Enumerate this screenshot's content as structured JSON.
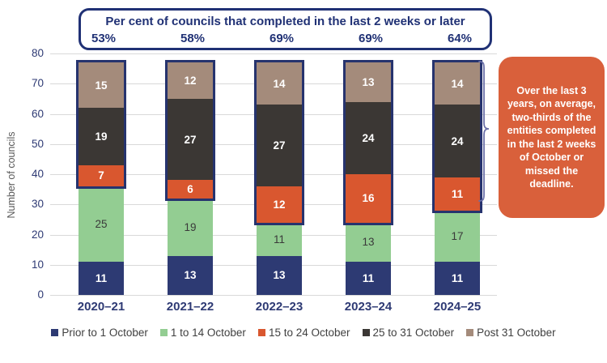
{
  "header": {
    "title": "Per cent of councils that completed in the last 2 weeks or later",
    "percentages": [
      "53%",
      "58%",
      "69%",
      "69%",
      "64%"
    ]
  },
  "chart_data": {
    "type": "bar",
    "stacked": true,
    "categories": [
      "2020–21",
      "2021–22",
      "2022–23",
      "2023–24",
      "2024–25"
    ],
    "series": [
      {
        "name": "Prior to 1 October",
        "color": "#2D3A73",
        "label_color": "#FFFFFF",
        "values": [
          11,
          13,
          13,
          11,
          11
        ]
      },
      {
        "name": "1 to 14 October",
        "color": "#93CD92",
        "label_color": "#3A3A3A",
        "values": [
          25,
          19,
          11,
          13,
          17
        ]
      },
      {
        "name": "15 to 24 October",
        "color": "#D9572F",
        "label_color": "#FFFFFF",
        "values": [
          7,
          6,
          12,
          16,
          11
        ]
      },
      {
        "name": "25 to 31 October",
        "color": "#3B3734",
        "label_color": "#FFFFFF",
        "values": [
          19,
          27,
          27,
          24,
          24
        ]
      },
      {
        "name": "Post 31 October",
        "color": "#A48B7B",
        "label_color": "#FFFFFF",
        "values": [
          15,
          12,
          14,
          13,
          14
        ]
      }
    ],
    "ylabel": "Number of councils",
    "ylim": [
      0,
      80
    ],
    "yticks": [
      0,
      10,
      20,
      30,
      40,
      50,
      60,
      70,
      80
    ],
    "grid": true,
    "legend_position": "bottom",
    "highlight_outline": {
      "from_series": "15 to 24 October",
      "from_series_index": 2,
      "color": "#26336E"
    }
  },
  "callout": {
    "text": "Over the last 3 years, on average, two-thirds of the entities completed in the last 2 weeks of October or missed the deadline.",
    "bg_color": "#D9603B",
    "text_color": "#FFFFFF"
  },
  "brace": {
    "color": "#6A6FA8"
  },
  "colors": {
    "header_navy": "#203175",
    "axis_text": "#2E3A74",
    "gridline": "#D9D9D9",
    "legend_text": "#404040"
  }
}
